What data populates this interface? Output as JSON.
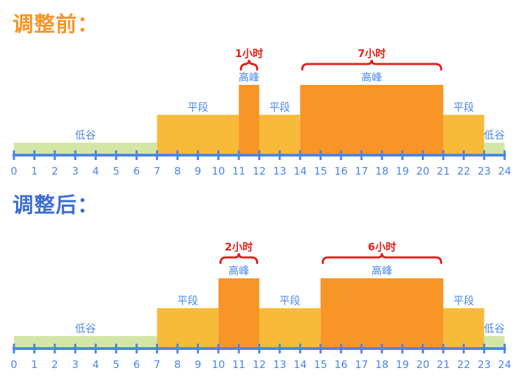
{
  "colors": {
    "valley": "#d4e6a7",
    "flat": "#f7ba39",
    "peak": "#f99427",
    "axis": "#4a86e8",
    "label": "#4a86e8",
    "annotation": "#e0201b",
    "title_before": "#f99427",
    "title_after": "#3d6fd1"
  },
  "titles": {
    "before": "调整前：",
    "after": "调整后："
  },
  "chart_data": [
    {
      "type": "bar",
      "title": "调整前：",
      "xlim": [
        0,
        24
      ],
      "x_ticks": [
        "0",
        "1",
        "2",
        "3",
        "4",
        "5",
        "6",
        "7",
        "8",
        "9",
        "10",
        "11",
        "12",
        "13",
        "14",
        "15",
        "16",
        "17",
        "18",
        "19",
        "20",
        "21",
        "22",
        "23",
        "24"
      ],
      "segments": [
        {
          "start": 0,
          "end": 7,
          "category": "valley",
          "label": "低谷"
        },
        {
          "start": 7,
          "end": 11,
          "category": "flat",
          "label": "平段"
        },
        {
          "start": 11,
          "end": 12,
          "category": "peak",
          "label": "高峰"
        },
        {
          "start": 12,
          "end": 14,
          "category": "flat",
          "label": "平段"
        },
        {
          "start": 14,
          "end": 21,
          "category": "peak",
          "label": "高峰"
        },
        {
          "start": 21,
          "end": 23,
          "category": "flat",
          "label": "平段"
        },
        {
          "start": 23,
          "end": 24,
          "category": "valley",
          "label": "低谷"
        }
      ],
      "category_levels": {
        "valley": 1,
        "flat": 3,
        "peak": 5
      },
      "annotations": [
        {
          "start": 11,
          "end": 12,
          "text": "1小时"
        },
        {
          "start": 14,
          "end": 21,
          "text": "7小时"
        }
      ]
    },
    {
      "type": "bar",
      "title": "调整后：",
      "xlim": [
        0,
        24
      ],
      "x_ticks": [
        "0",
        "1",
        "2",
        "3",
        "4",
        "5",
        "6",
        "7",
        "8",
        "9",
        "10",
        "11",
        "12",
        "13",
        "14",
        "15",
        "16",
        "17",
        "18",
        "19",
        "20",
        "21",
        "22",
        "23",
        "24"
      ],
      "segments": [
        {
          "start": 0,
          "end": 7,
          "category": "valley",
          "label": "低谷"
        },
        {
          "start": 7,
          "end": 10,
          "category": "flat",
          "label": "平段"
        },
        {
          "start": 10,
          "end": 12,
          "category": "peak",
          "label": "高峰"
        },
        {
          "start": 12,
          "end": 15,
          "category": "flat",
          "label": "平段"
        },
        {
          "start": 15,
          "end": 21,
          "category": "peak",
          "label": "高峰"
        },
        {
          "start": 21,
          "end": 23,
          "category": "flat",
          "label": "平段"
        },
        {
          "start": 23,
          "end": 24,
          "category": "valley",
          "label": "低谷"
        }
      ],
      "category_levels": {
        "valley": 1,
        "flat": 3,
        "peak": 5
      },
      "annotations": [
        {
          "start": 10,
          "end": 12,
          "text": "2小时"
        },
        {
          "start": 15,
          "end": 21,
          "text": "6小时"
        }
      ]
    }
  ]
}
